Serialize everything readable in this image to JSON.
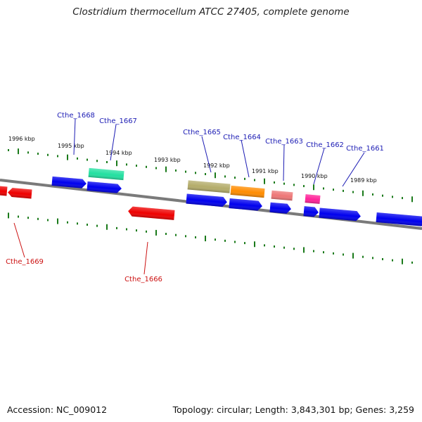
{
  "title": "Clostridium thermocellum ATCC 27405, complete genome",
  "accession": "Accession: NC_009012",
  "summary": "Topology: circular; Length: 3,843,301 bp; Genes: 3,259",
  "colors": {
    "plus_label": "#1c1cb4",
    "minus_label": "#cc1111",
    "tick": "#1a7a1a",
    "backbone": "#7a7a7a"
  },
  "kbp_labels": [
    "1996 kbp",
    "1995 kbp",
    "1994 kbp",
    "1993 kbp",
    "1992 kbp",
    "1991 kbp",
    "1990 kbp",
    "1989 kbp"
  ],
  "gene_labels": [
    "Cthe_1668",
    "Cthe_1667",
    "Cthe_1665",
    "Cthe_1664",
    "Cthe_1663",
    "Cthe_1662",
    "Cthe_1661",
    "Cthe_1669",
    "Cthe_1666"
  ],
  "feature_colors": [
    "#0000ee",
    "#22e0a0",
    "#b4ac6a",
    "#ff8c00",
    "#ee7777",
    "#ff2299",
    "#ee0000"
  ]
}
